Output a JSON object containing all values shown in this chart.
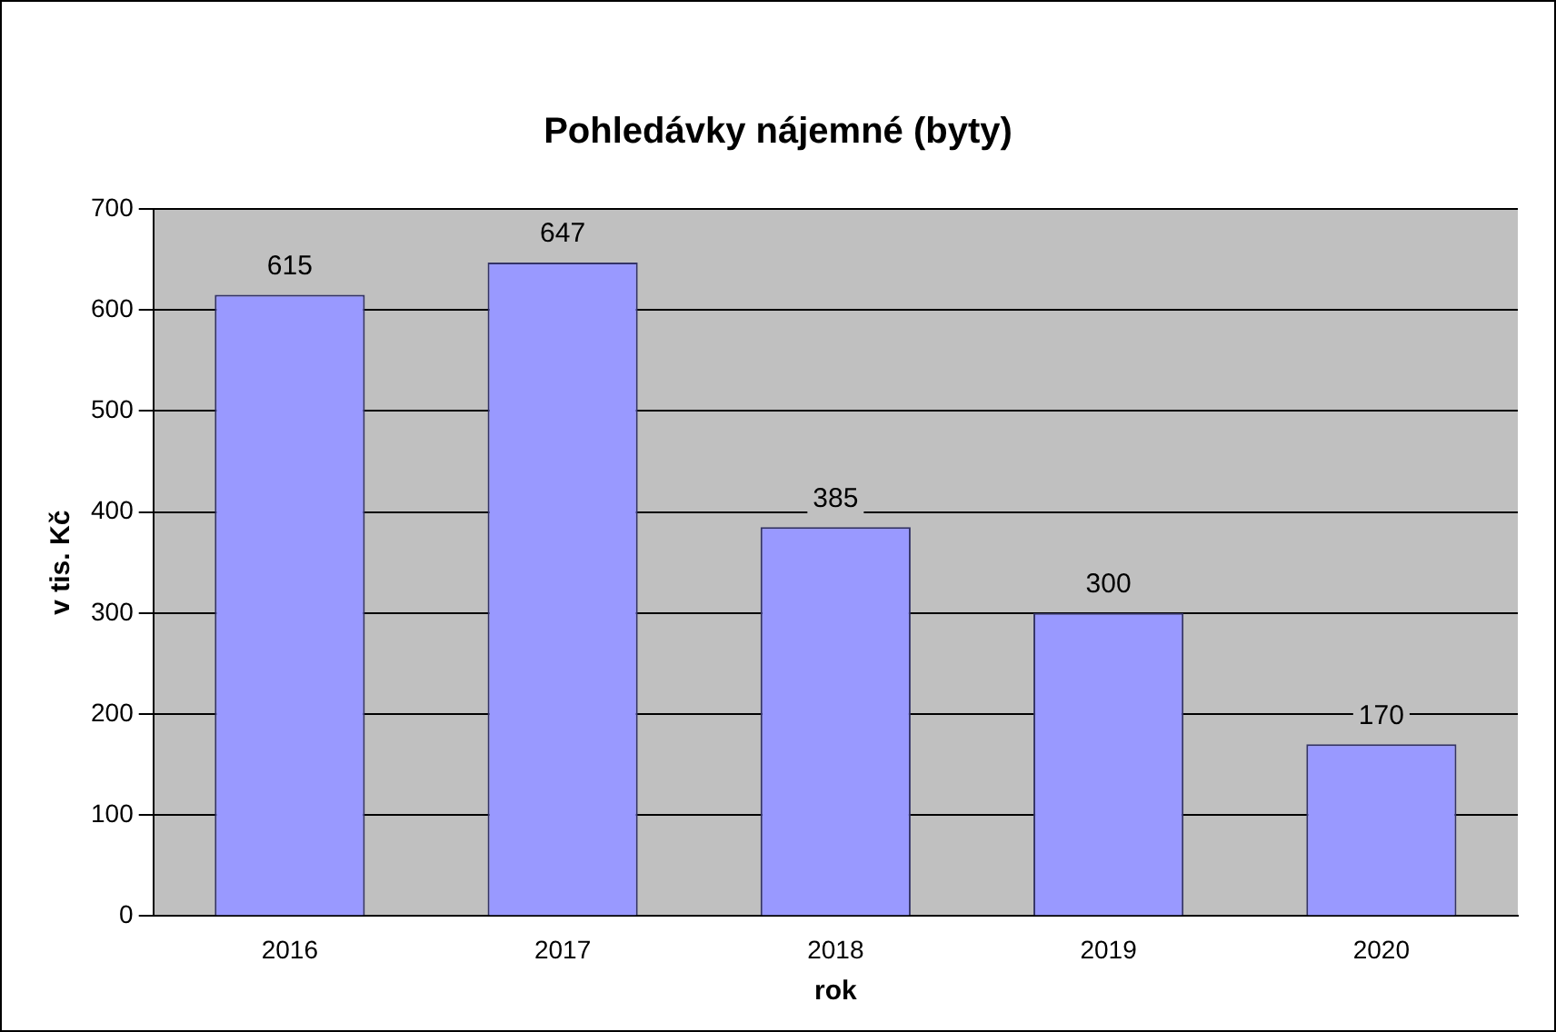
{
  "chart_data": {
    "type": "bar",
    "title": "Pohledávky nájemné (byty)",
    "xlabel": "rok",
    "ylabel": "v tis. Kč",
    "categories": [
      "2016",
      "2017",
      "2018",
      "2019",
      "2020"
    ],
    "values": [
      615,
      647,
      385,
      300,
      170
    ],
    "color": "#9999ff",
    "ylim": [
      0,
      700
    ],
    "yticks": [
      0,
      100,
      200,
      300,
      400,
      500,
      600,
      700
    ],
    "grid": "y",
    "data_labels": true
  }
}
